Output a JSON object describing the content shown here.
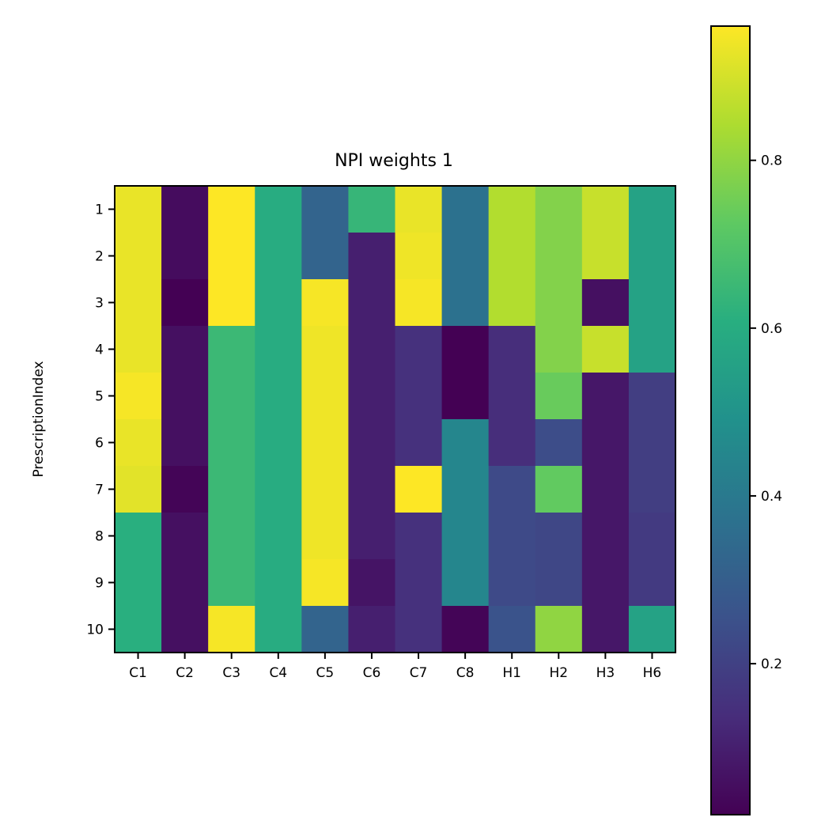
{
  "chart_data": {
    "type": "heatmap",
    "title": "NPI weights 1",
    "xlabel": "",
    "ylabel": "PrescriptionIndex",
    "x_categories": [
      "C1",
      "C2",
      "C3",
      "C4",
      "C5",
      "C6",
      "C7",
      "C8",
      "H1",
      "H2",
      "H3",
      "H6"
    ],
    "y_categories": [
      "1",
      "2",
      "3",
      "4",
      "5",
      "6",
      "7",
      "8",
      "9",
      "10"
    ],
    "values": [
      [
        0.93,
        0.05,
        0.96,
        0.6,
        0.32,
        0.64,
        0.93,
        0.37,
        0.85,
        0.78,
        0.88,
        0.56
      ],
      [
        0.93,
        0.05,
        0.96,
        0.6,
        0.32,
        0.1,
        0.94,
        0.37,
        0.85,
        0.78,
        0.88,
        0.56
      ],
      [
        0.93,
        0.02,
        0.96,
        0.6,
        0.95,
        0.1,
        0.95,
        0.37,
        0.85,
        0.78,
        0.06,
        0.56
      ],
      [
        0.93,
        0.06,
        0.65,
        0.6,
        0.94,
        0.1,
        0.15,
        0.02,
        0.14,
        0.78,
        0.88,
        0.56
      ],
      [
        0.95,
        0.06,
        0.65,
        0.6,
        0.94,
        0.1,
        0.15,
        0.02,
        0.14,
        0.74,
        0.08,
        0.19
      ],
      [
        0.93,
        0.06,
        0.65,
        0.6,
        0.94,
        0.1,
        0.15,
        0.45,
        0.14,
        0.24,
        0.08,
        0.19
      ],
      [
        0.92,
        0.03,
        0.65,
        0.6,
        0.94,
        0.1,
        0.96,
        0.45,
        0.23,
        0.73,
        0.08,
        0.19
      ],
      [
        0.61,
        0.06,
        0.65,
        0.6,
        0.94,
        0.1,
        0.15,
        0.45,
        0.23,
        0.22,
        0.08,
        0.18
      ],
      [
        0.61,
        0.06,
        0.65,
        0.6,
        0.95,
        0.07,
        0.15,
        0.45,
        0.23,
        0.22,
        0.08,
        0.18
      ],
      [
        0.61,
        0.06,
        0.95,
        0.6,
        0.32,
        0.1,
        0.15,
        0.03,
        0.26,
        0.8,
        0.08,
        0.56
      ]
    ],
    "colormap": "viridis",
    "vmin": 0.02,
    "vmax": 0.96,
    "colorbar_ticks": [
      0.2,
      0.4,
      0.6,
      0.8
    ],
    "colorbar_tick_labels": [
      "0.2",
      "0.4",
      "0.6",
      "0.8"
    ],
    "colorbar_position": "right",
    "grid": false
  }
}
